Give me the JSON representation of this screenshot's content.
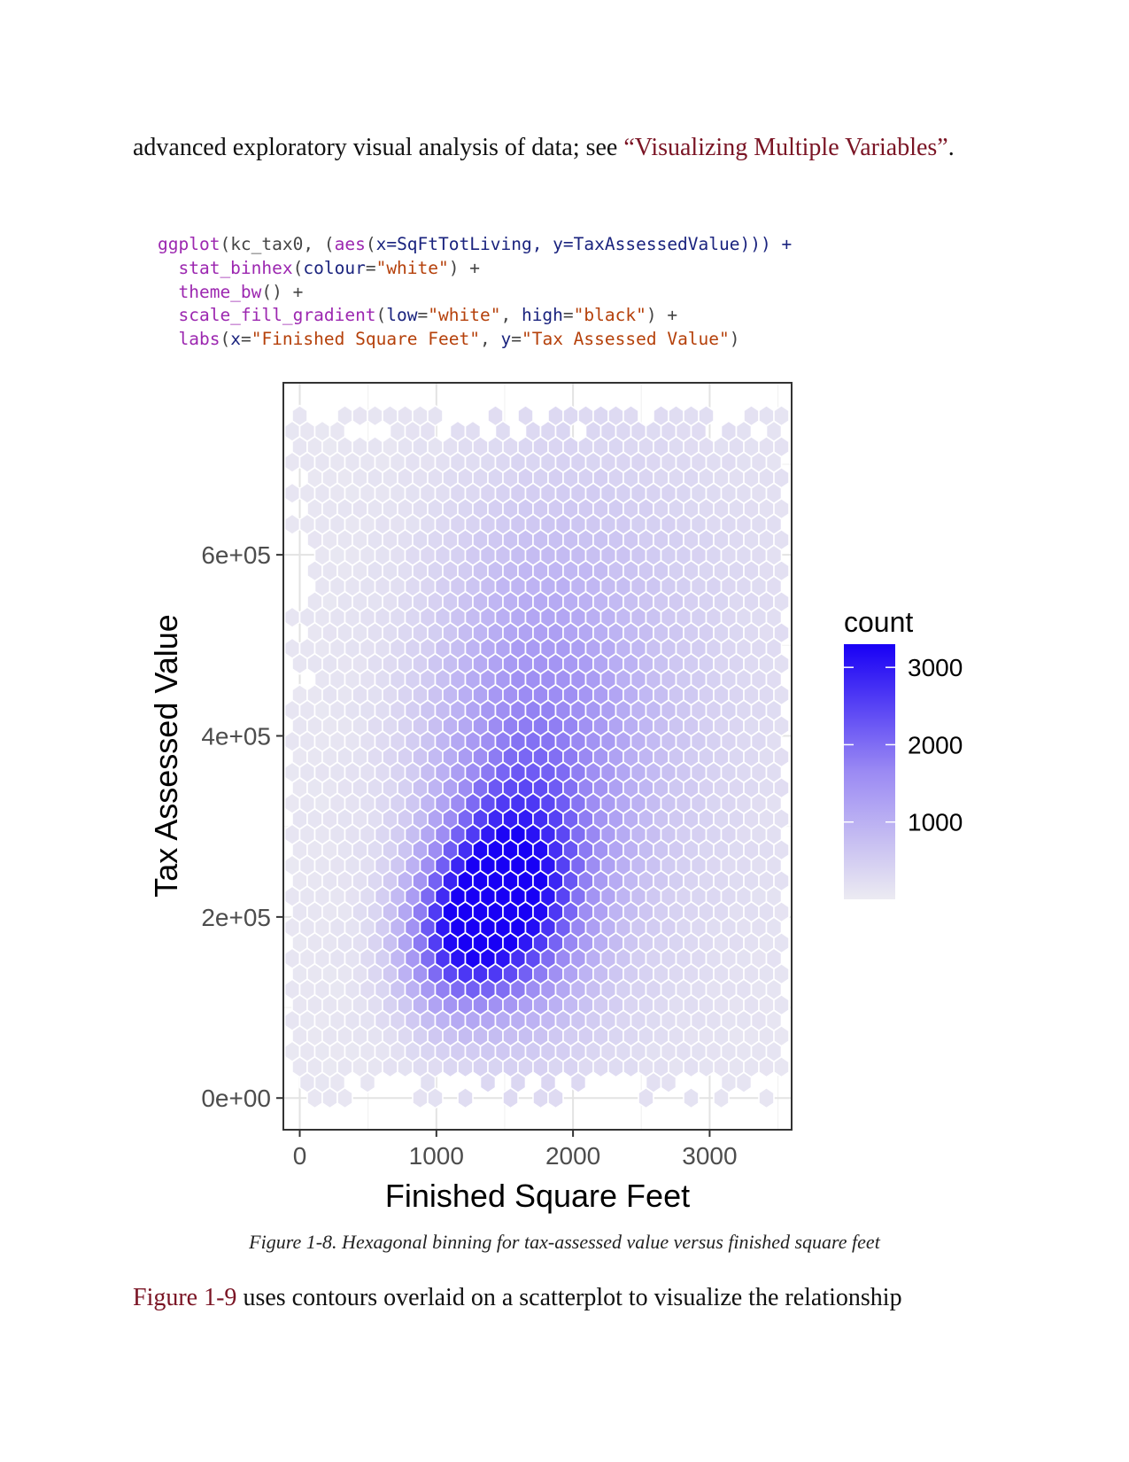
{
  "intro": {
    "text": "advanced exploratory visual analysis of data; see ",
    "link": "“Visualizing Multiple Variables”",
    "end": "."
  },
  "code": {
    "l1": {
      "fn": "ggplot",
      "a": "(kc_tax0, (",
      "fn2": "aes",
      "b": "(",
      "k1": "x",
      "e1": "=SqFtTotLiving, ",
      "k2": "y",
      "e2": "=TaxAssessedValue))) +"
    },
    "l2": {
      "fn": "stat_binhex",
      "a": "(",
      "k1": "colour",
      "e1": "=",
      "s1": "\"white\"",
      "b": ") +"
    },
    "l3": {
      "fn": "theme_bw",
      "a": "() +"
    },
    "l4": {
      "fn": "scale_fill_gradient",
      "a": "(",
      "k1": "low",
      "e1": "=",
      "s1": "\"white\"",
      "c": ", ",
      "k2": "high",
      "e2": "=",
      "s2": "\"black\"",
      "b": ") +"
    },
    "l5": {
      "fn": "labs",
      "a": "(",
      "k1": "x",
      "e1": "=",
      "s1": "\"Finished Square Feet\"",
      "c": ", ",
      "k2": "y",
      "e2": "=",
      "s2": "\"Tax Assessed Value\"",
      "b": ")"
    }
  },
  "chart_data": {
    "type": "heatmap",
    "subtype": "hexbin",
    "xlabel": "Finished Square Feet",
    "ylabel": "Tax Assessed Value",
    "x_ticks": [
      "0",
      "1000",
      "2000",
      "3000"
    ],
    "x_tick_values": [
      0,
      1000,
      2000,
      3000
    ],
    "y_ticks": [
      "0e+00",
      "2e+05",
      "4e+05",
      "6e+05"
    ],
    "y_tick_values": [
      0,
      200000,
      400000,
      600000
    ],
    "xlim": [
      -120,
      3600
    ],
    "ylim": [
      -35000,
      790000
    ],
    "legend": {
      "title": "count",
      "labels": [
        "3000",
        "2000",
        "1000"
      ],
      "label_values": [
        3000,
        2000,
        1000
      ],
      "range": [
        0,
        3300
      ],
      "low_color": "#ecebf2",
      "high_color": "#1800f5",
      "placement": "right"
    },
    "density_model": {
      "peak_count": 3300,
      "cluster_centers": [
        {
          "x": 1550,
          "y": 225000,
          "count": 2300
        },
        {
          "x": 1200,
          "y": 190000,
          "count": 1500
        },
        {
          "x": 1700,
          "y": 350000,
          "count": 1400
        },
        {
          "x": 2300,
          "y": 450000,
          "count": 500
        },
        {
          "x": 1000,
          "y": 160000,
          "count": 700
        }
      ]
    },
    "grid": true,
    "theme": "bw"
  },
  "caption": "Figure 1-8. Hexagonal binning for tax-assessed value versus finished square feet",
  "outro": {
    "link": "Figure 1-9",
    "text": " uses contours overlaid on a scatterplot to visualize the relationship"
  },
  "colors": {
    "link": "#7a1424",
    "hex_outline": "#ffffff",
    "panel_border": "#333333"
  }
}
